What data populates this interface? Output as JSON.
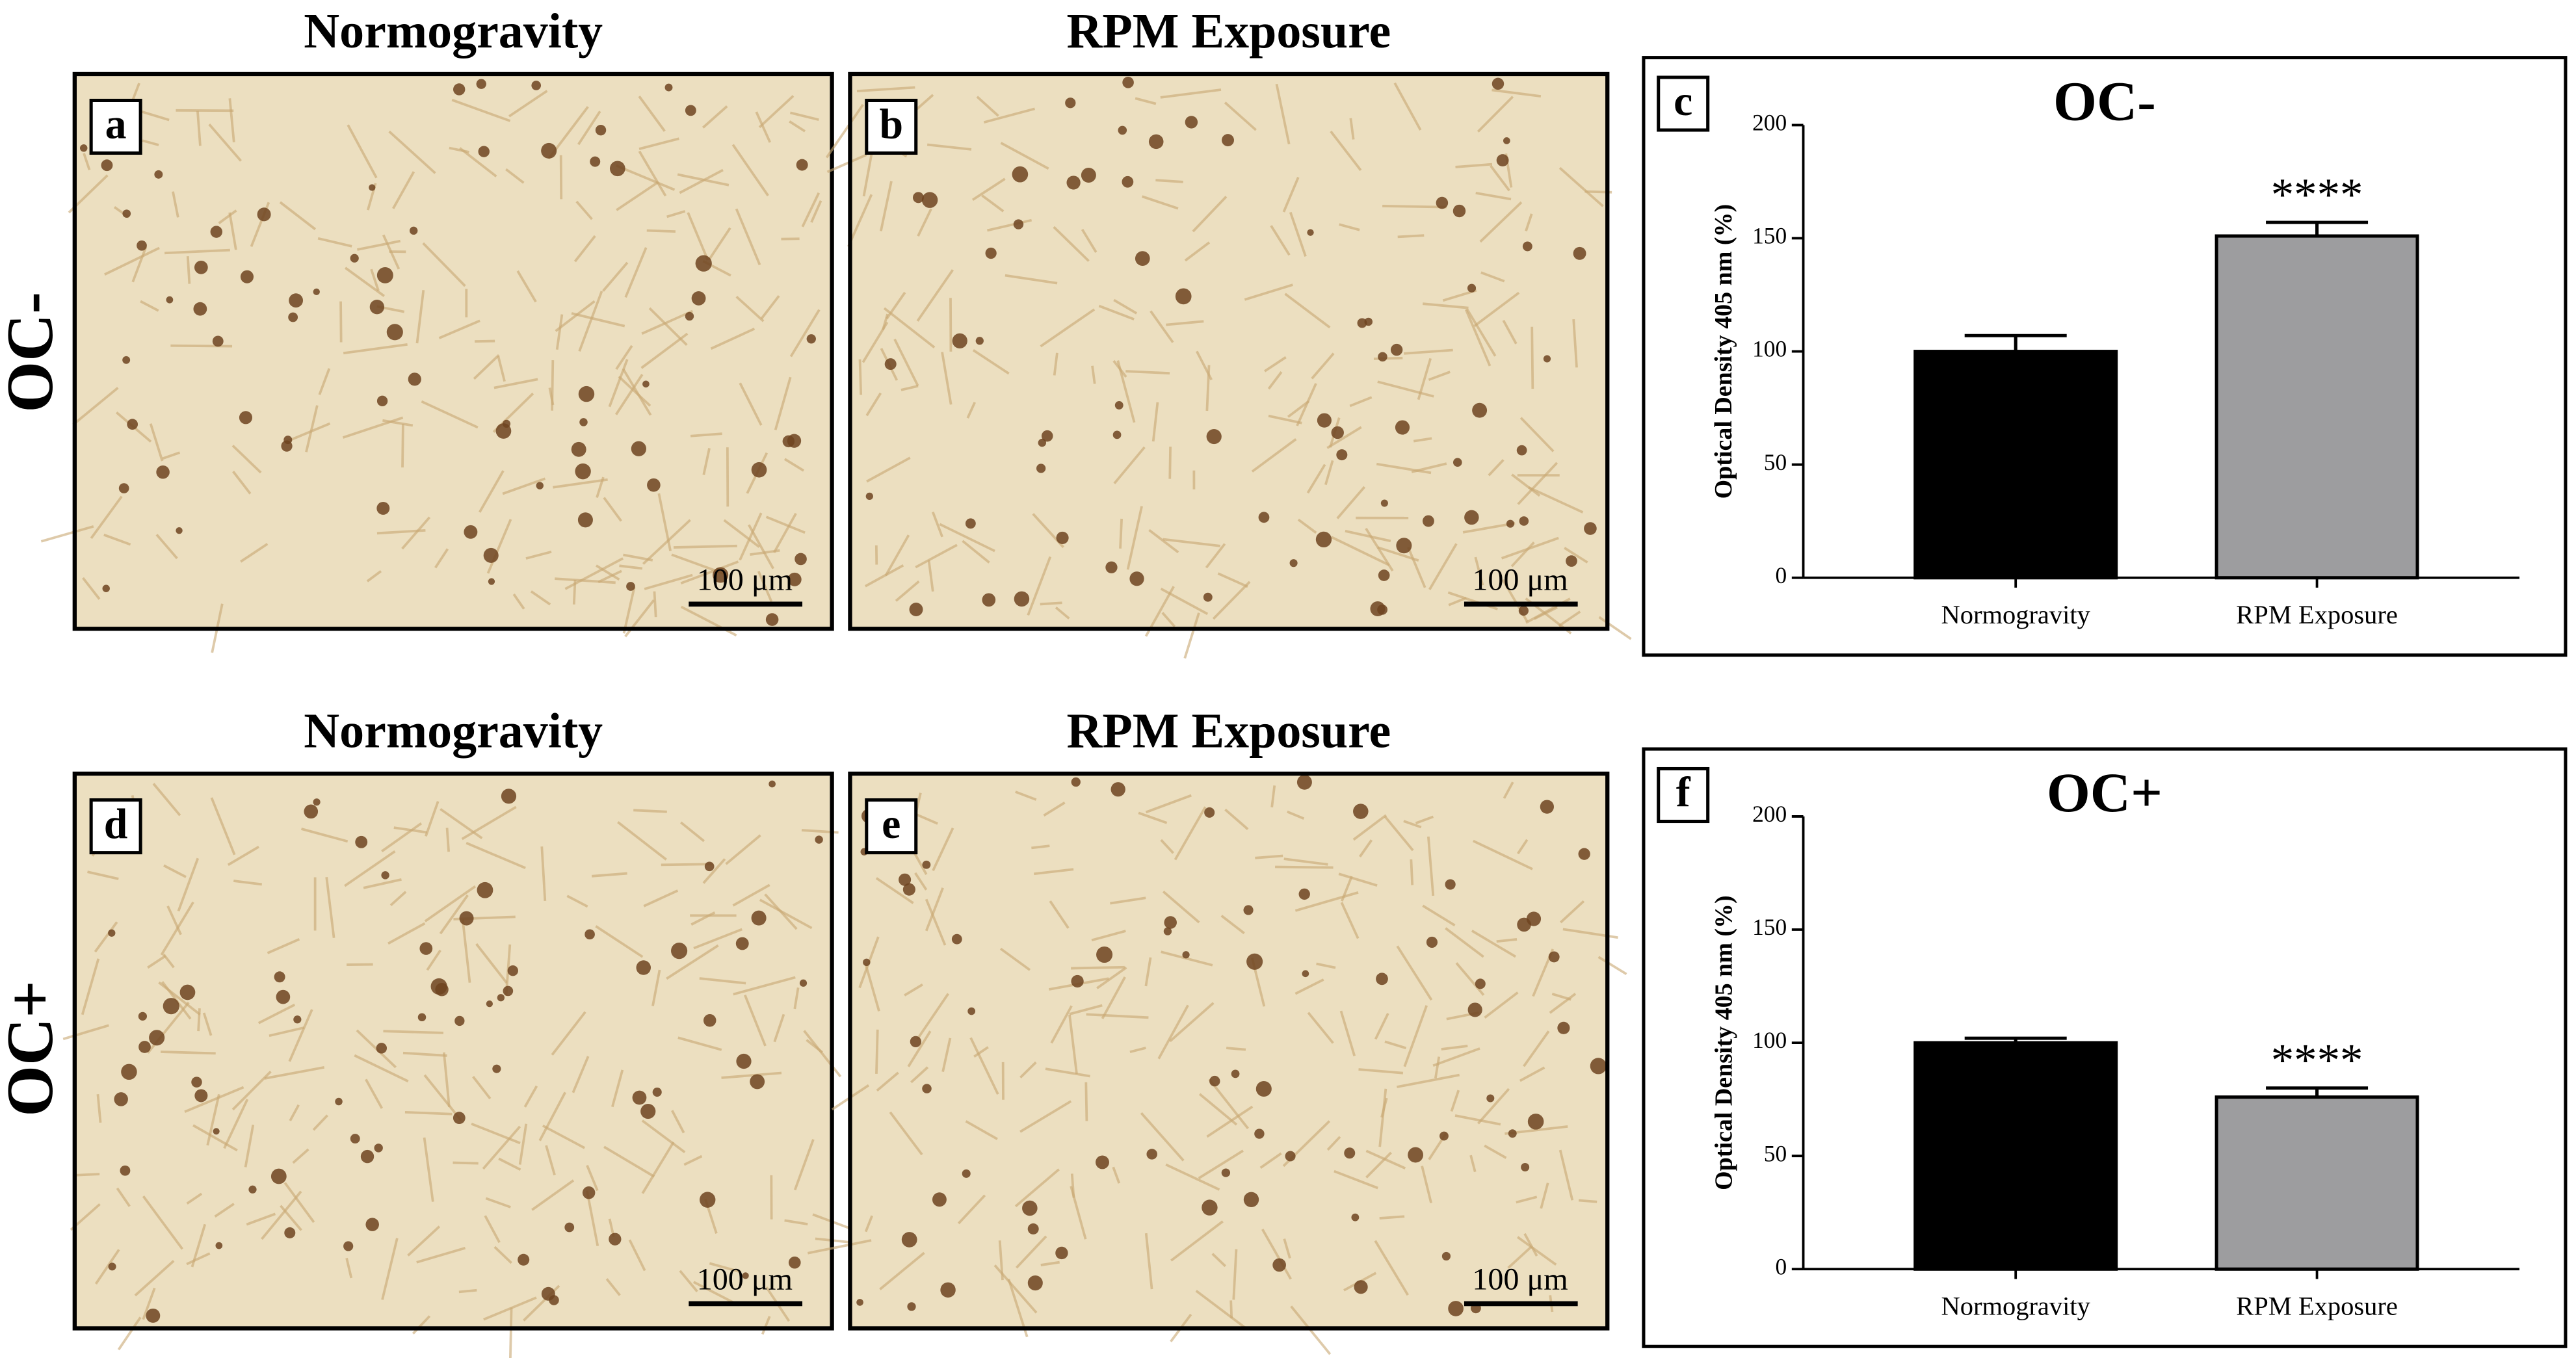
{
  "column_titles": [
    "Normogravity",
    "RPM Exposure",
    "Normogravity",
    "RPM Exposure"
  ],
  "row_labels": [
    "OC-",
    "OC+"
  ],
  "image_letters": [
    "a",
    "b",
    "d",
    "e"
  ],
  "scale_bar_labels": [
    "100 μm",
    "100 μm",
    "100 μm",
    "100 μm"
  ],
  "chart_data": [
    {
      "type": "bar",
      "panel_letter": "c",
      "title": "OC-",
      "y_label": "Optical Density 405 nm (%)",
      "categories": [
        "Normogravity",
        "RPM Exposure"
      ],
      "values": [
        100,
        151
      ],
      "errors": [
        7,
        6
      ],
      "colors": [
        "#000000",
        "#9d9d9f"
      ],
      "annotation": "****",
      "annotated_category": "RPM Exposure",
      "ylim": [
        0,
        200
      ],
      "yticks": [
        0,
        50,
        100,
        150,
        200
      ]
    },
    {
      "type": "bar",
      "panel_letter": "f",
      "title": "OC+",
      "y_label": "Optical Density 405 nm (%)",
      "categories": [
        "Normogravity",
        "RPM Exposure"
      ],
      "values": [
        100,
        76
      ],
      "errors": [
        2,
        4
      ],
      "colors": [
        "#000000",
        "#9d9d9f"
      ],
      "annotation": "****",
      "annotated_category": "RPM Exposure",
      "ylim": [
        0,
        200
      ],
      "yticks": [
        0,
        50,
        100,
        150,
        200
      ]
    }
  ]
}
